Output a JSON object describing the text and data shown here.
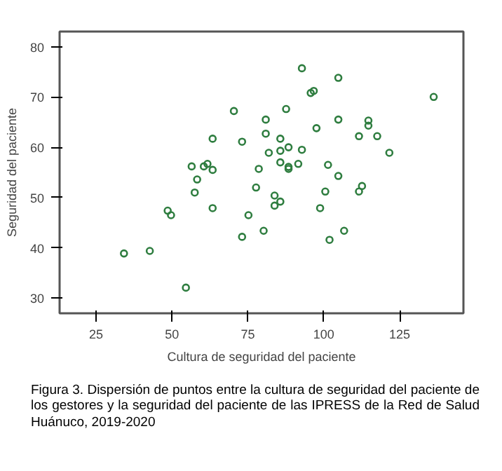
{
  "chart_data": {
    "type": "scatter",
    "xlabel": "Cultura de seguridad del paciente",
    "ylabel": "Seguridad del paciente",
    "x": [
      34.2,
      42.7,
      48.6,
      49.7,
      54.6,
      56.5,
      57.5,
      58.3,
      60.5,
      61.7,
      63.4,
      63.4,
      63.4,
      70.4,
      73.1,
      73.1,
      75.2,
      77.7,
      78.6,
      80.2,
      80.9,
      80.9,
      81.9,
      83.8,
      83.8,
      85.7,
      85.7,
      85.7,
      85.7,
      87.6,
      88.4,
      88.4,
      88.4,
      91.6,
      92.8,
      92.8,
      95.7,
      96.7,
      97.6,
      98.8,
      100.5,
      101.4,
      101.9,
      104.8,
      104.8,
      104.8,
      106.7,
      111.6,
      111.6,
      112.6,
      114.7,
      114.7,
      117.6,
      121.6,
      136.2
    ],
    "series": [
      {
        "color": "#2e7d3f",
        "values": [
          38.9,
          39.4,
          47.4,
          46.5,
          32.1,
          56.2,
          51.0,
          53.6,
          56.2,
          56.7,
          61.7,
          55.5,
          47.9,
          67.2,
          61.1,
          42.2,
          46.5,
          52.0,
          55.7,
          43.4,
          62.7,
          65.5,
          58.9,
          50.4,
          48.4,
          61.7,
          59.3,
          57.0,
          49.2,
          67.6,
          60.0,
          56.1,
          55.7,
          56.7,
          75.7,
          59.5,
          70.8,
          71.2,
          63.8,
          47.9,
          51.2,
          56.5,
          41.6,
          73.8,
          65.5,
          54.3,
          43.4,
          62.2,
          51.2,
          52.3,
          65.3,
          64.3,
          62.2,
          58.9,
          70.0
        ]
      }
    ],
    "xlim": [
      13,
      146
    ],
    "ylim": [
      27,
      83
    ],
    "xticks": [
      25,
      50,
      75,
      100,
      125
    ],
    "yticks": [
      30,
      40,
      50,
      60,
      70,
      80
    ],
    "marker": "circle",
    "grid": false,
    "annotations": [
      "Figura 3. Dispersión de puntos entre la cultura de seguridad del paciente de los gestores y la seguridad del paciente de las IPRESS de la Red de Salud Huánuco, 2019-2020"
    ]
  }
}
